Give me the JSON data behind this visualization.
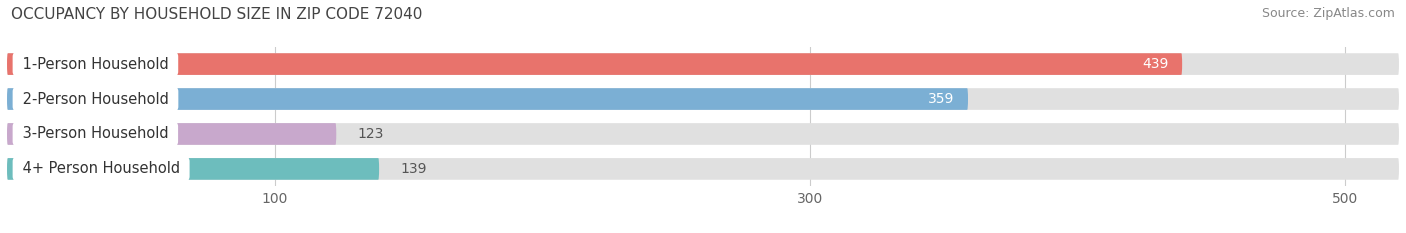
{
  "title": "OCCUPANCY BY HOUSEHOLD SIZE IN ZIP CODE 72040",
  "source": "Source: ZipAtlas.com",
  "categories": [
    "1-Person Household",
    "2-Person Household",
    "3-Person Household",
    "4+ Person Household"
  ],
  "values": [
    439,
    359,
    123,
    139
  ],
  "bar_colors": [
    "#e8736c",
    "#7bafd4",
    "#c8a8cc",
    "#6dbdbd"
  ],
  "bar_bg_color": "#e0e0e0",
  "xlim": [
    0,
    520
  ],
  "xticks": [
    100,
    300,
    500
  ],
  "label_inside_threshold": 150,
  "fig_bg_color": "#ffffff",
  "bar_height": 0.62,
  "title_fontsize": 11,
  "source_fontsize": 9,
  "tick_fontsize": 10,
  "label_fontsize": 10,
  "category_fontsize": 10.5
}
